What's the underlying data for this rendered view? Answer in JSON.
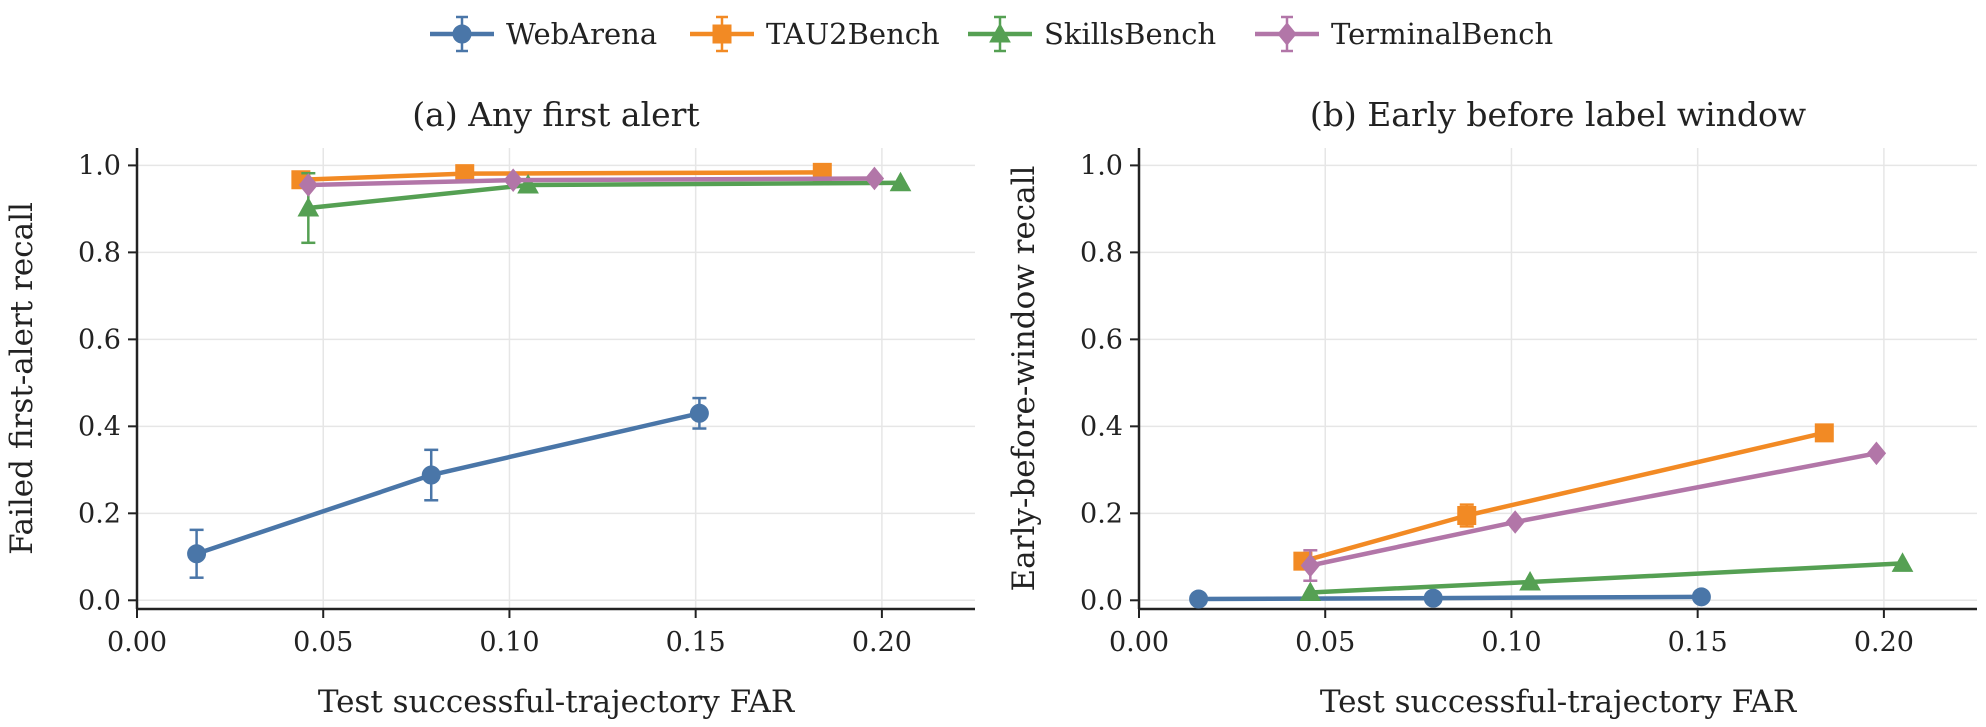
{
  "legend": {
    "placement": "top-center",
    "entries": [
      {
        "name": "WebArena",
        "color": "#4a76a8",
        "marker": "circle"
      },
      {
        "name": "TAU2Bench",
        "color": "#f28a24",
        "marker": "square"
      },
      {
        "name": "SkillsBench",
        "color": "#55a053",
        "marker": "triangle"
      },
      {
        "name": "TerminalBench",
        "color": "#b276a8",
        "marker": "diamond"
      }
    ]
  },
  "chart_data": [
    {
      "type": "line",
      "title": "(a) Any first alert",
      "xlabel": "Test successful-trajectory FAR",
      "ylabel": "Failed first-alert recall",
      "xlim": [
        0.0,
        0.225
      ],
      "ylim": [
        -0.02,
        1.04
      ],
      "xticks": [
        0.0,
        0.05,
        0.1,
        0.15,
        0.2
      ],
      "xtick_labels": [
        "0.00",
        "0.05",
        "0.10",
        "0.15",
        "0.20"
      ],
      "yticks": [
        0.0,
        0.2,
        0.4,
        0.6,
        0.8,
        1.0
      ],
      "ytick_labels": [
        "0.0",
        "0.2",
        "0.4",
        "0.6",
        "0.8",
        "1.0"
      ],
      "grid": true,
      "series": [
        {
          "name": "WebArena",
          "x": [
            0.016,
            0.079,
            0.151
          ],
          "y": [
            0.107,
            0.288,
            0.43
          ],
          "err": [
            0.055,
            0.058,
            0.035
          ]
        },
        {
          "name": "TAU2Bench",
          "x": [
            0.044,
            0.088,
            0.184
          ],
          "y": [
            0.967,
            0.981,
            0.984
          ],
          "err": [
            0.0,
            0.0,
            0.0
          ]
        },
        {
          "name": "SkillsBench",
          "x": [
            0.046,
            0.105,
            0.205
          ],
          "y": [
            0.902,
            0.955,
            0.96
          ],
          "err": [
            0.08,
            0.0,
            0.0
          ]
        },
        {
          "name": "TerminalBench",
          "x": [
            0.046,
            0.101,
            0.198
          ],
          "y": [
            0.955,
            0.966,
            0.97
          ],
          "err": [
            0.0,
            0.0,
            0.0
          ]
        }
      ]
    },
    {
      "type": "line",
      "title": "(b) Early before label window",
      "xlabel": "Test successful-trajectory FAR",
      "ylabel": "Early-before-window recall",
      "xlim": [
        0.0,
        0.225
      ],
      "ylim": [
        -0.02,
        1.04
      ],
      "xticks": [
        0.0,
        0.05,
        0.1,
        0.15,
        0.2
      ],
      "xtick_labels": [
        "0.00",
        "0.05",
        "0.10",
        "0.15",
        "0.20"
      ],
      "yticks": [
        0.0,
        0.2,
        0.4,
        0.6,
        0.8,
        1.0
      ],
      "ytick_labels": [
        "0.0",
        "0.2",
        "0.4",
        "0.6",
        "0.8",
        "1.0"
      ],
      "grid": true,
      "series": [
        {
          "name": "WebArena",
          "x": [
            0.016,
            0.079,
            0.151
          ],
          "y": [
            0.003,
            0.005,
            0.008
          ],
          "err": [
            0.0,
            0.0,
            0.0
          ]
        },
        {
          "name": "TAU2Bench",
          "x": [
            0.044,
            0.088,
            0.184
          ],
          "y": [
            0.09,
            0.195,
            0.385
          ],
          "err": [
            0.0,
            0.025,
            0.0
          ]
        },
        {
          "name": "SkillsBench",
          "x": [
            0.046,
            0.105,
            0.205
          ],
          "y": [
            0.018,
            0.042,
            0.085
          ],
          "err": [
            0.0,
            0.0,
            0.0
          ]
        },
        {
          "name": "TerminalBench",
          "x": [
            0.046,
            0.101,
            0.198
          ],
          "y": [
            0.08,
            0.18,
            0.338
          ],
          "err": [
            0.035,
            0.0,
            0.0
          ]
        }
      ]
    }
  ]
}
